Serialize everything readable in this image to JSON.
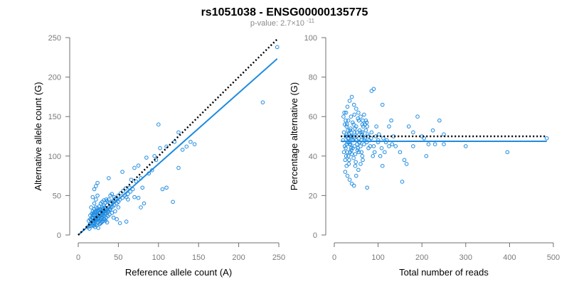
{
  "title": "rs1051038 - ENSG00000135775",
  "subtitle": {
    "prefix": "p-value: 2.7×10",
    "exponent": "-11"
  },
  "colors": {
    "points": "#1f8be0",
    "fit_line": "#1f8be0",
    "reference_line": "#000000",
    "axis": "#6f6f6f",
    "tick_text": "#7a7a7a"
  },
  "chart_data": [
    {
      "type": "scatter",
      "title": "",
      "xlabel": "Reference allele count (A)",
      "ylabel": "Alternative allele count (G)",
      "xlim": [
        0,
        250
      ],
      "ylim": [
        0,
        250
      ],
      "xticks": [
        0,
        50,
        100,
        150,
        200,
        250
      ],
      "yticks": [
        0,
        50,
        100,
        150,
        200,
        250
      ],
      "grid": false,
      "points": [
        [
          12,
          10
        ],
        [
          14,
          12
        ],
        [
          15,
          14
        ],
        [
          16,
          15
        ],
        [
          17,
          13
        ],
        [
          18,
          16
        ],
        [
          19,
          18
        ],
        [
          20,
          15
        ],
        [
          21,
          17
        ],
        [
          22,
          20
        ],
        [
          13,
          18
        ],
        [
          15,
          20
        ],
        [
          17,
          22
        ],
        [
          18,
          25
        ],
        [
          20,
          24
        ],
        [
          22,
          22
        ],
        [
          23,
          19
        ],
        [
          24,
          26
        ],
        [
          25,
          21
        ],
        [
          26,
          24
        ],
        [
          14,
          8
        ],
        [
          16,
          11
        ],
        [
          18,
          12
        ],
        [
          20,
          12
        ],
        [
          22,
          14
        ],
        [
          24,
          16
        ],
        [
          26,
          18
        ],
        [
          28,
          20
        ],
        [
          30,
          22
        ],
        [
          32,
          24
        ],
        [
          15,
          25
        ],
        [
          17,
          27
        ],
        [
          19,
          28
        ],
        [
          21,
          30
        ],
        [
          23,
          29
        ],
        [
          25,
          31
        ],
        [
          27,
          27
        ],
        [
          29,
          30
        ],
        [
          31,
          28
        ],
        [
          33,
          30
        ],
        [
          20,
          33
        ],
        [
          22,
          35
        ],
        [
          24,
          34
        ],
        [
          26,
          36
        ],
        [
          28,
          33
        ],
        [
          30,
          35
        ],
        [
          32,
          37
        ],
        [
          34,
          34
        ],
        [
          36,
          38
        ],
        [
          38,
          35
        ],
        [
          25,
          20
        ],
        [
          27,
          23
        ],
        [
          29,
          26
        ],
        [
          31,
          25
        ],
        [
          33,
          27
        ],
        [
          35,
          30
        ],
        [
          37,
          31
        ],
        [
          39,
          33
        ],
        [
          41,
          35
        ],
        [
          43,
          36
        ],
        [
          28,
          40
        ],
        [
          30,
          42
        ],
        [
          32,
          44
        ],
        [
          34,
          41
        ],
        [
          36,
          43
        ],
        [
          38,
          45
        ],
        [
          40,
          40
        ],
        [
          42,
          42
        ],
        [
          44,
          44
        ],
        [
          46,
          46
        ],
        [
          21,
          10
        ],
        [
          23,
          12
        ],
        [
          25,
          9
        ],
        [
          27,
          14
        ],
        [
          29,
          16
        ],
        [
          31,
          18
        ],
        [
          33,
          20
        ],
        [
          35,
          22
        ],
        [
          37,
          24
        ],
        [
          39,
          26
        ],
        [
          45,
          38
        ],
        [
          48,
          40
        ],
        [
          50,
          42
        ],
        [
          52,
          45
        ],
        [
          55,
          47
        ],
        [
          58,
          50
        ],
        [
          60,
          48
        ],
        [
          62,
          52
        ],
        [
          65,
          55
        ],
        [
          68,
          58
        ],
        [
          40,
          50
        ],
        [
          42,
          52
        ],
        [
          45,
          48
        ],
        [
          47,
          46
        ],
        [
          50,
          50
        ],
        [
          53,
          53
        ],
        [
          56,
          56
        ],
        [
          59,
          59
        ],
        [
          62,
          45
        ],
        [
          64,
          60
        ],
        [
          18,
          30
        ],
        [
          20,
          40
        ],
        [
          22,
          45
        ],
        [
          24,
          50
        ],
        [
          26,
          28
        ],
        [
          28,
          32
        ],
        [
          30,
          26
        ],
        [
          32,
          20
        ],
        [
          34,
          18
        ],
        [
          36,
          16
        ],
        [
          60,
          17
        ],
        [
          52,
          15
        ],
        [
          48,
          20
        ],
        [
          44,
          22
        ],
        [
          70,
          48
        ],
        [
          75,
          47
        ],
        [
          80,
          60
        ],
        [
          66,
          70
        ],
        [
          72,
          68
        ],
        [
          78,
          72
        ],
        [
          38,
          72
        ],
        [
          55,
          80
        ],
        [
          70,
          85
        ],
        [
          75,
          88
        ],
        [
          85,
          98
        ],
        [
          95,
          100
        ],
        [
          102,
          110
        ],
        [
          110,
          112
        ],
        [
          100,
          140
        ],
        [
          120,
          118
        ],
        [
          125,
          130
        ],
        [
          130,
          108
        ],
        [
          135,
          112
        ],
        [
          140,
          118
        ],
        [
          145,
          115
        ],
        [
          105,
          58
        ],
        [
          110,
          60
        ],
        [
          125,
          85
        ],
        [
          118,
          42
        ],
        [
          230,
          168
        ],
        [
          248,
          238
        ],
        [
          88,
          78
        ],
        [
          92,
          82
        ],
        [
          97,
          95
        ],
        [
          82,
          40
        ],
        [
          78,
          35
        ],
        [
          20,
          58
        ],
        [
          22,
          62
        ],
        [
          24,
          66
        ],
        [
          18,
          48
        ],
        [
          16,
          35
        ],
        [
          35,
          45
        ],
        [
          40,
          32
        ],
        [
          42,
          28
        ],
        [
          46,
          30
        ],
        [
          50,
          35
        ],
        [
          19,
          22
        ],
        [
          21,
          21
        ],
        [
          23,
          23
        ],
        [
          25,
          25
        ],
        [
          27,
          19
        ],
        [
          29,
          21
        ],
        [
          31,
          33
        ],
        [
          33,
          35
        ],
        [
          35,
          28
        ],
        [
          37,
          29
        ],
        [
          16,
          19
        ],
        [
          18,
          21
        ],
        [
          20,
          26
        ],
        [
          22,
          28
        ],
        [
          24,
          30
        ],
        [
          26,
          32
        ],
        [
          28,
          15
        ],
        [
          30,
          17
        ],
        [
          32,
          30
        ],
        [
          34,
          32
        ]
      ],
      "series": [
        {
          "type": "fit",
          "slope": 0.9,
          "intercept": 0
        },
        {
          "type": "reference",
          "slope": 1.0,
          "intercept": 0
        }
      ]
    },
    {
      "type": "scatter",
      "title": "",
      "xlabel": "Total number of reads",
      "ylabel": "Percentage alternative (G)",
      "xlim": [
        0,
        500
      ],
      "ylim": [
        0,
        100
      ],
      "xticks": [
        0,
        100,
        200,
        300,
        400,
        500
      ],
      "yticks": [
        0,
        20,
        40,
        60,
        80,
        100
      ],
      "grid": false,
      "points": [
        [
          20,
          48
        ],
        [
          22,
          52
        ],
        [
          24,
          45
        ],
        [
          26,
          50
        ],
        [
          28,
          55
        ],
        [
          30,
          42
        ],
        [
          32,
          58
        ],
        [
          34,
          47
        ],
        [
          36,
          53
        ],
        [
          38,
          44
        ],
        [
          21,
          60
        ],
        [
          23,
          62
        ],
        [
          25,
          38
        ],
        [
          27,
          40
        ],
        [
          29,
          56
        ],
        [
          31,
          49
        ],
        [
          33,
          51
        ],
        [
          35,
          46
        ],
        [
          37,
          54
        ],
        [
          39,
          43
        ],
        [
          40,
          50
        ],
        [
          42,
          57
        ],
        [
          44,
          39
        ],
        [
          46,
          61
        ],
        [
          48,
          35
        ],
        [
          50,
          48
        ],
        [
          52,
          52
        ],
        [
          54,
          44
        ],
        [
          56,
          58
        ],
        [
          58,
          47
        ],
        [
          25,
          32
        ],
        [
          28,
          35
        ],
        [
          30,
          30
        ],
        [
          35,
          28
        ],
        [
          40,
          26
        ],
        [
          45,
          25
        ],
        [
          50,
          30
        ],
        [
          55,
          33
        ],
        [
          60,
          36
        ],
        [
          65,
          38
        ],
        [
          30,
          65
        ],
        [
          35,
          68
        ],
        [
          40,
          70
        ],
        [
          45,
          66
        ],
        [
          50,
          64
        ],
        [
          55,
          62
        ],
        [
          60,
          60
        ],
        [
          65,
          58
        ],
        [
          70,
          56
        ],
        [
          75,
          55
        ],
        [
          60,
          45
        ],
        [
          62,
          48
        ],
        [
          64,
          52
        ],
        [
          66,
          50
        ],
        [
          68,
          46
        ],
        [
          70,
          49
        ],
        [
          72,
          53
        ],
        [
          74,
          47
        ],
        [
          76,
          51
        ],
        [
          78,
          44
        ],
        [
          80,
          48
        ],
        [
          85,
          52
        ],
        [
          90,
          45
        ],
        [
          95,
          50
        ],
        [
          100,
          47
        ],
        [
          105,
          40
        ],
        [
          110,
          35
        ],
        [
          115,
          42
        ],
        [
          120,
          48
        ],
        [
          125,
          55
        ],
        [
          130,
          58
        ],
        [
          135,
          50
        ],
        [
          140,
          45
        ],
        [
          150,
          42
        ],
        [
          155,
          27
        ],
        [
          160,
          38
        ],
        [
          165,
          36
        ],
        [
          170,
          55
        ],
        [
          180,
          52
        ],
        [
          75,
          24
        ],
        [
          85,
          73
        ],
        [
          90,
          74
        ],
        [
          110,
          66
        ],
        [
          190,
          60
        ],
        [
          200,
          50
        ],
        [
          210,
          40
        ],
        [
          230,
          46
        ],
        [
          240,
          58
        ],
        [
          250,
          51
        ],
        [
          250,
          46
        ],
        [
          300,
          45
        ],
        [
          395,
          42
        ],
        [
          485,
          49
        ],
        [
          180,
          45
        ],
        [
          205,
          49
        ],
        [
          215,
          46
        ],
        [
          225,
          53
        ],
        [
          100,
          48
        ],
        [
          26,
          44
        ],
        [
          28,
          46
        ],
        [
          32,
          40
        ],
        [
          34,
          38
        ],
        [
          36,
          42
        ],
        [
          38,
          60
        ],
        [
          42,
          44
        ],
        [
          44,
          56
        ],
        [
          46,
          52
        ],
        [
          48,
          41
        ],
        [
          52,
          46
        ],
        [
          54,
          59
        ],
        [
          56,
          49
        ],
        [
          58,
          53
        ],
        [
          62,
          42
        ],
        [
          64,
          40
        ],
        [
          66,
          55
        ],
        [
          68,
          61
        ],
        [
          72,
          58
        ],
        [
          74,
          57
        ],
        [
          24,
          56
        ],
        [
          27,
          62
        ],
        [
          31,
          53
        ],
        [
          33,
          36
        ],
        [
          37,
          46
        ],
        [
          41,
          48
        ],
        [
          43,
          50
        ],
        [
          47,
          54
        ],
        [
          49,
          37
        ],
        [
          53,
          43
        ],
        [
          22,
          42
        ],
        [
          26,
          58
        ],
        [
          30,
          47
        ],
        [
          36,
          50
        ],
        [
          40,
          41
        ],
        [
          46,
          45
        ],
        [
          50,
          55
        ],
        [
          56,
          42
        ],
        [
          60,
          52
        ],
        [
          64,
          56
        ],
        [
          82,
          45
        ],
        [
          88,
          40
        ],
        [
          92,
          42
        ],
        [
          96,
          55
        ],
        [
          102,
          51
        ],
        [
          108,
          44
        ],
        [
          112,
          49
        ],
        [
          118,
          47
        ],
        [
          125,
          45
        ],
        [
          132,
          46
        ],
        [
          28,
          51
        ],
        [
          33,
          49
        ],
        [
          39,
          52
        ],
        [
          44,
          48
        ],
        [
          51,
          50
        ],
        [
          57,
          47
        ],
        [
          63,
          51
        ],
        [
          69,
          48
        ],
        [
          77,
          50
        ],
        [
          84,
          49
        ]
      ],
      "series": [
        {
          "type": "fit",
          "slope": 0,
          "intercept": 47.5
        },
        {
          "type": "reference",
          "slope": 0,
          "intercept": 50
        }
      ]
    }
  ]
}
